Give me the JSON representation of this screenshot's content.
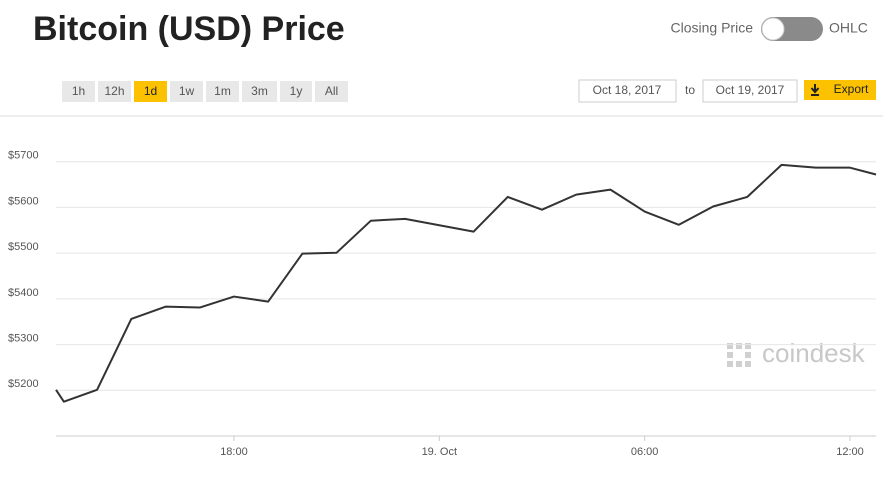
{
  "header": {
    "title": "Bitcoin (USD) Price"
  },
  "toggle": {
    "left": "Closing Price",
    "right": "OHLC"
  },
  "controls": {
    "ranges": [
      "1h",
      "12h",
      "1d",
      "1w",
      "1m",
      "3m",
      "1y",
      "All"
    ],
    "selected": 2,
    "from": "Oct 18, 2017",
    "separator": "to",
    "to": "Oct 19, 2017",
    "export": "Export"
  },
  "watermark": "coindesk",
  "chart_data": {
    "type": "line",
    "color": "#333333",
    "x": [
      12.8,
      13.03,
      14,
      15,
      16,
      17,
      18,
      19,
      20,
      21,
      22,
      23,
      25,
      26,
      27,
      28,
      29,
      30,
      31,
      32,
      33,
      34,
      35,
      36,
      36.76
    ],
    "values": [
      5201,
      5175,
      5201,
      5356,
      5383,
      5381,
      5405,
      5394,
      5499,
      5501,
      5571,
      5575,
      5547,
      5623,
      5595,
      5628,
      5639,
      5591,
      5562,
      5602,
      5623,
      5693,
      5687,
      5687,
      5672
    ],
    "xlim": [
      12.8,
      36.76
    ],
    "ylim": [
      5100,
      5800
    ],
    "xticks": [
      {
        "value": 18,
        "label": "18:00"
      },
      {
        "value": 24,
        "label": "19. Oct"
      },
      {
        "value": 30,
        "label": "06:00"
      },
      {
        "value": 36,
        "label": "12:00"
      }
    ],
    "yticks": [
      {
        "value": 5200,
        "label": "$5200"
      },
      {
        "value": 5300,
        "label": "$5300"
      },
      {
        "value": 5400,
        "label": "$5400"
      },
      {
        "value": 5500,
        "label": "$5500"
      },
      {
        "value": 5600,
        "label": "$5600"
      },
      {
        "value": 5700,
        "label": "$5700"
      }
    ],
    "grid": true
  }
}
